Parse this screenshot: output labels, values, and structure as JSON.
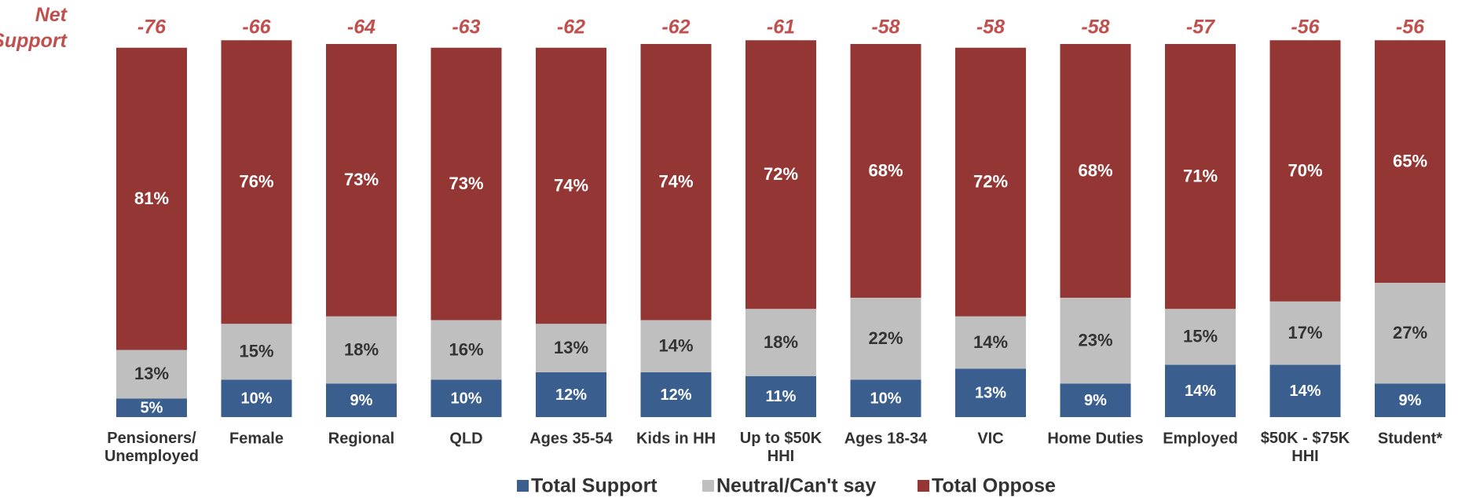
{
  "chart_data": {
    "type": "stacked_bar",
    "net_label": "Net Support",
    "net_values": [
      -76,
      -66,
      -64,
      -63,
      -62,
      -62,
      -61,
      -58,
      -58,
      -58,
      -57,
      -56,
      -56
    ],
    "categories": [
      "Pensioners/\nUnemployed",
      "Female",
      "Regional",
      "QLD",
      "Ages 35-54",
      "Kids in HH",
      "Up to $50K\nHHI",
      "Ages 18-34",
      "VIC",
      "Home Duties",
      "Employed",
      "$50K - $75K\nHHI",
      "Student*"
    ],
    "series": [
      {
        "name": "Total Support",
        "color": "#3a5f8f",
        "label_color": "#ffffff",
        "values": [
          5,
          10,
          9,
          10,
          12,
          12,
          11,
          10,
          13,
          9,
          14,
          14,
          9
        ],
        "value_labels": [
          "5%",
          "10%",
          "9%",
          "10%",
          "12%",
          "12%",
          "11%",
          "10%",
          "13%",
          "9%",
          "14%",
          "14%",
          "9%"
        ]
      },
      {
        "name": "Neutral/Can't say",
        "color": "#bfbfbf",
        "label_color": "#333333",
        "values": [
          13,
          15,
          18,
          16,
          13,
          14,
          18,
          22,
          14,
          23,
          15,
          17,
          27
        ],
        "value_labels": [
          "13%",
          "15%",
          "18%",
          "16%",
          "13%",
          "14%",
          "18%",
          "22%",
          "14%",
          "23%",
          "15%",
          "17%",
          "27%"
        ]
      },
      {
        "name": "Total Oppose",
        "color": "#943634",
        "label_color": "#ffffff",
        "values": [
          81,
          76,
          73,
          73,
          74,
          74,
          72,
          68,
          72,
          68,
          71,
          70,
          65
        ],
        "value_labels": [
          "81%",
          "76%",
          "73%",
          "73%",
          "74%",
          "74%",
          "72%",
          "68%",
          "72%",
          "68%",
          "71%",
          "70%",
          "65%"
        ]
      }
    ]
  }
}
